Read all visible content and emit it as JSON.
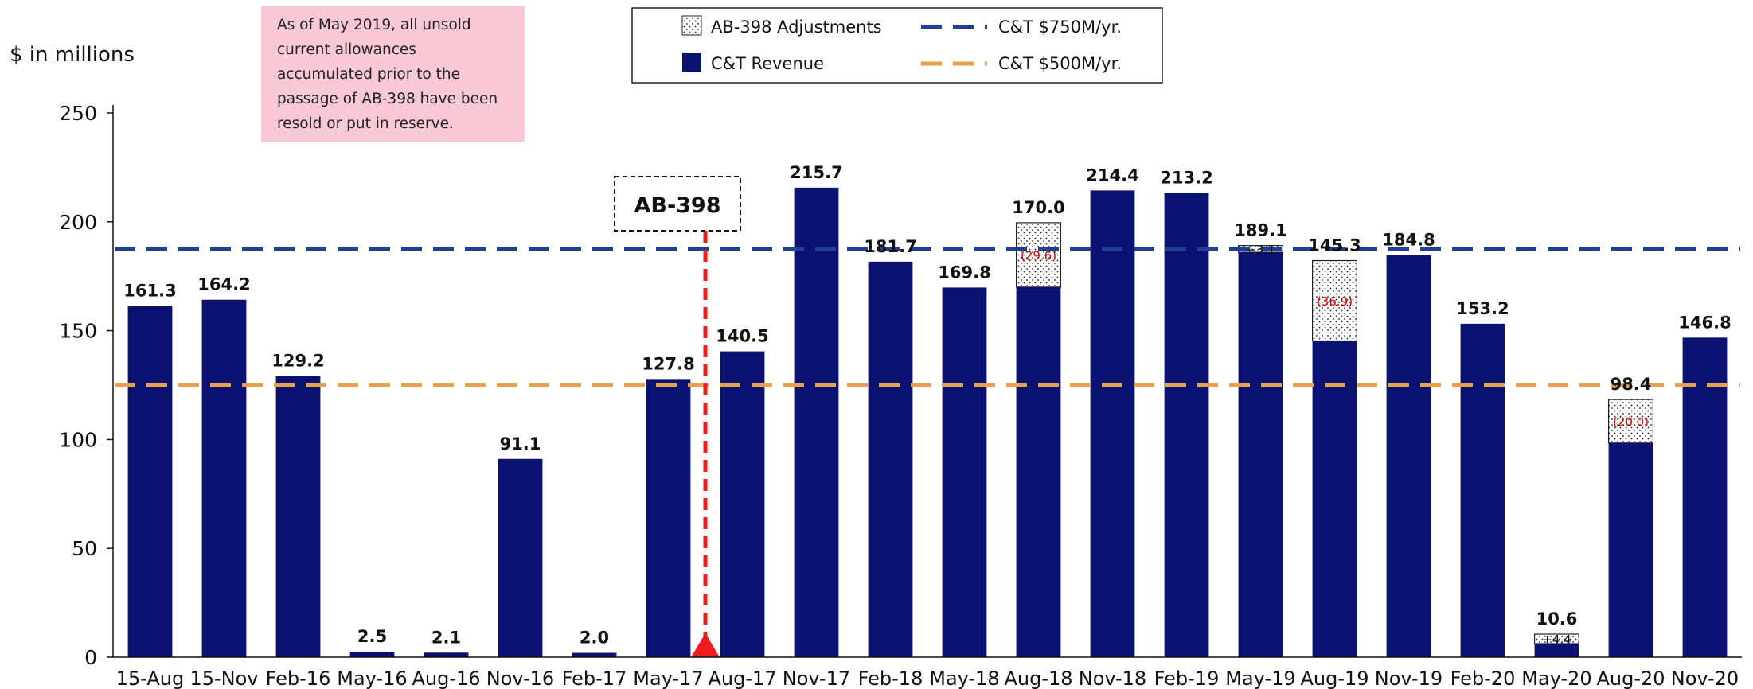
{
  "chart_data": {
    "type": "bar",
    "ylabel": "$ in millions",
    "ylim": [
      0,
      250
    ],
    "yticks": [
      0,
      50,
      100,
      150,
      200,
      250
    ],
    "categories": [
      "15-Aug",
      "15-Nov",
      "Feb-16",
      "May-16",
      "Aug-16",
      "Nov-16",
      "Feb-17",
      "May-17",
      "Aug-17",
      "Nov-17",
      "Feb-18",
      "May-18",
      "Aug-18",
      "Nov-18",
      "Feb-19",
      "May-19",
      "Aug-19",
      "Nov-19",
      "Feb-20",
      "May-20",
      "Aug-20",
      "Nov-20"
    ],
    "series": [
      {
        "name": "C&T Revenue",
        "values": [
          161.3,
          164.2,
          129.2,
          2.5,
          2.1,
          91.1,
          2.0,
          127.8,
          140.5,
          215.7,
          181.7,
          169.8,
          170.0,
          214.4,
          213.2,
          186.0,
          145.3,
          184.8,
          153.2,
          6.2,
          98.4,
          146.8
        ]
      },
      {
        "name": "AB-398 Adjustments",
        "values": [
          0,
          0,
          0,
          0,
          0,
          0,
          0,
          0,
          0,
          0,
          0,
          0,
          29.6,
          0,
          0,
          3.1,
          36.9,
          0,
          0,
          4.4,
          20.0,
          0
        ]
      }
    ],
    "value_labels": [
      "161.3",
      "164.2",
      "129.2",
      "2.5",
      "2.1",
      "91.1",
      "2.0",
      "127.8",
      "140.5",
      "215.7",
      "181.7",
      "169.8",
      "170.0",
      "214.4",
      "213.2",
      "189.1",
      "145.3",
      "184.8",
      "153.2",
      "10.6",
      "98.4",
      "146.8"
    ],
    "adjustment_labels": [
      {
        "category": "Aug-18",
        "text": "(29.6)"
      },
      {
        "category": "May-19",
        "text": "+3.1"
      },
      {
        "category": "Aug-19",
        "text": "(36.9)"
      },
      {
        "category": "May-20",
        "text": "+4.4"
      },
      {
        "category": "Aug-20",
        "text": "(20.0)"
      }
    ],
    "reference_lines": [
      {
        "name": "C&T $750M/yr.",
        "value": 187.5,
        "color": "#1f3f93"
      },
      {
        "name": "C&T $500M/yr.",
        "value": 125,
        "color": "#e8a04a"
      }
    ],
    "marker": {
      "label": "AB-398",
      "position_between": [
        "May-17",
        "Aug-17"
      ],
      "color": "#ee1c1c"
    },
    "annotation": "As of May 2019, all unsold current allowances accumulated prior to the passage of AB-398 have been resold or put in reserve.",
    "colors": {
      "bar": "#0b1170",
      "annotation_bg": "#f8c8d4"
    },
    "legend": [
      {
        "label": "AB-398 Adjustments",
        "kind": "dotted-box"
      },
      {
        "label": "C&T Revenue",
        "kind": "solid-box"
      },
      {
        "label": "C&T $750M/yr.",
        "kind": "dashed-line"
      },
      {
        "label": "C&T $500M/yr.",
        "kind": "dashed-line"
      }
    ]
  }
}
